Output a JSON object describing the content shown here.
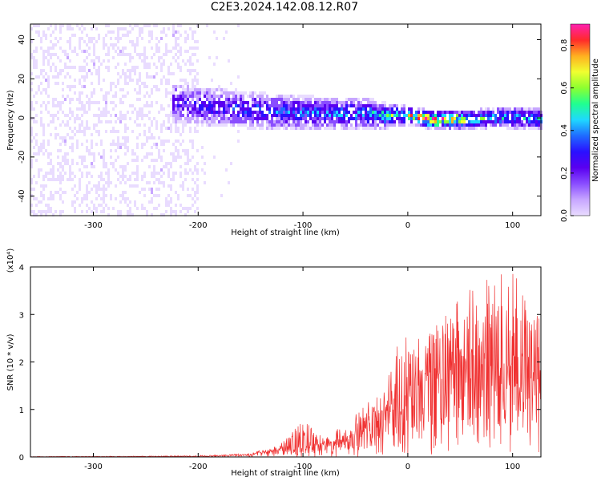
{
  "title": "C2E3.2024.142.08.12.R07",
  "colors": {
    "spectrogram_palette": [
      "#ffffff",
      "#e9dcff",
      "#c7a6ff",
      "#8a4dff",
      "#5a00f0",
      "#2a10ff",
      "#1f6bff",
      "#1fd8ff",
      "#20ff90",
      "#8cff30",
      "#f0ff30",
      "#ffb020",
      "#ff2a2a",
      "#ff20b0"
    ],
    "snr_line": "#f03030"
  },
  "chart_data": [
    {
      "type": "heatmap",
      "xlabel": "Height of straight line (km)",
      "ylabel": "Frequency (Hz)",
      "xlim": [
        -360,
        127
      ],
      "ylim": [
        -50,
        48
      ],
      "xticks": [
        -300,
        -200,
        -100,
        0,
        100
      ],
      "yticks": [
        -40,
        -20,
        0,
        20,
        40
      ],
      "grid": false,
      "colorbar": {
        "label": "Normalized spectral amplitude",
        "range": [
          0,
          0.9
        ],
        "ticks": [
          0.0,
          0.2,
          0.4,
          0.6,
          0.8
        ]
      },
      "description_of_structure": {
        "noise_region_x": [
          -360,
          -200
        ],
        "band_center_hz": [
          {
            "x": -220,
            "y": 8
          },
          {
            "x": -200,
            "y": 7
          },
          {
            "x": -160,
            "y": 5
          },
          {
            "x": -120,
            "y": 4
          },
          {
            "x": -80,
            "y": 3
          },
          {
            "x": -40,
            "y": 3
          },
          {
            "x": -20,
            "y": 2
          },
          {
            "x": 0,
            "y": 2
          },
          {
            "x": 20,
            "y": 0
          },
          {
            "x": 40,
            "y": 0
          },
          {
            "x": 60,
            "y": 0
          },
          {
            "x": 80,
            "y": 1
          },
          {
            "x": 100,
            "y": 1
          },
          {
            "x": 127,
            "y": 0
          }
        ],
        "band_halfwidth_hz": [
          {
            "x": -220,
            "y": 10
          },
          {
            "x": -120,
            "y": 9
          },
          {
            "x": -40,
            "y": 8
          },
          {
            "x": 0,
            "y": 5
          },
          {
            "x": 60,
            "y": 5
          },
          {
            "x": 127,
            "y": 6
          }
        ],
        "peak_amplitude": [
          {
            "x": -220,
            "y": 0.22
          },
          {
            "x": -160,
            "y": 0.3
          },
          {
            "x": -100,
            "y": 0.33
          },
          {
            "x": -40,
            "y": 0.38
          },
          {
            "x": 0,
            "y": 0.6
          },
          {
            "x": 20,
            "y": 0.85
          },
          {
            "x": 40,
            "y": 0.75
          },
          {
            "x": 80,
            "y": 0.45
          },
          {
            "x": 127,
            "y": 0.4
          }
        ]
      }
    },
    {
      "type": "line",
      "xlabel": "Height of straight line (km)",
      "ylabel": "SNR (10 * v/v)",
      "y_multiplier_label": "(x10⁴)",
      "xlim": [
        -360,
        127
      ],
      "ylim": [
        0,
        4
      ],
      "xticks": [
        -300,
        -200,
        -100,
        0,
        100
      ],
      "yticks": [
        0,
        1,
        2,
        3,
        4
      ],
      "grid": false,
      "series": [
        {
          "envelope_upper": [
            {
              "x": -360,
              "y": 0.01
            },
            {
              "x": -250,
              "y": 0.02
            },
            {
              "x": -180,
              "y": 0.04
            },
            {
              "x": -150,
              "y": 0.08
            },
            {
              "x": -140,
              "y": 0.15
            },
            {
              "x": -120,
              "y": 0.3
            },
            {
              "x": -100,
              "y": 0.8
            },
            {
              "x": -80,
              "y": 0.4
            },
            {
              "x": -60,
              "y": 0.7
            },
            {
              "x": -40,
              "y": 1.1
            },
            {
              "x": -20,
              "y": 1.6
            },
            {
              "x": -5,
              "y": 2.7
            },
            {
              "x": 10,
              "y": 2.5
            },
            {
              "x": 30,
              "y": 3.0
            },
            {
              "x": 60,
              "y": 3.6
            },
            {
              "x": 80,
              "y": 3.9
            },
            {
              "x": 100,
              "y": 4.0
            },
            {
              "x": 110,
              "y": 3.5
            },
            {
              "x": 127,
              "y": 3.3
            }
          ],
          "envelope_mean": [
            {
              "x": -360,
              "y": 0.005
            },
            {
              "x": -200,
              "y": 0.01
            },
            {
              "x": -150,
              "y": 0.05
            },
            {
              "x": -120,
              "y": 0.15
            },
            {
              "x": -90,
              "y": 0.2
            },
            {
              "x": -60,
              "y": 0.3
            },
            {
              "x": -40,
              "y": 0.55
            },
            {
              "x": -20,
              "y": 0.9
            },
            {
              "x": 0,
              "y": 1.2
            },
            {
              "x": 20,
              "y": 1.6
            },
            {
              "x": 40,
              "y": 1.8
            },
            {
              "x": 60,
              "y": 1.75
            },
            {
              "x": 80,
              "y": 1.6
            },
            {
              "x": 100,
              "y": 1.55
            },
            {
              "x": 127,
              "y": 1.5
            }
          ]
        }
      ]
    }
  ]
}
